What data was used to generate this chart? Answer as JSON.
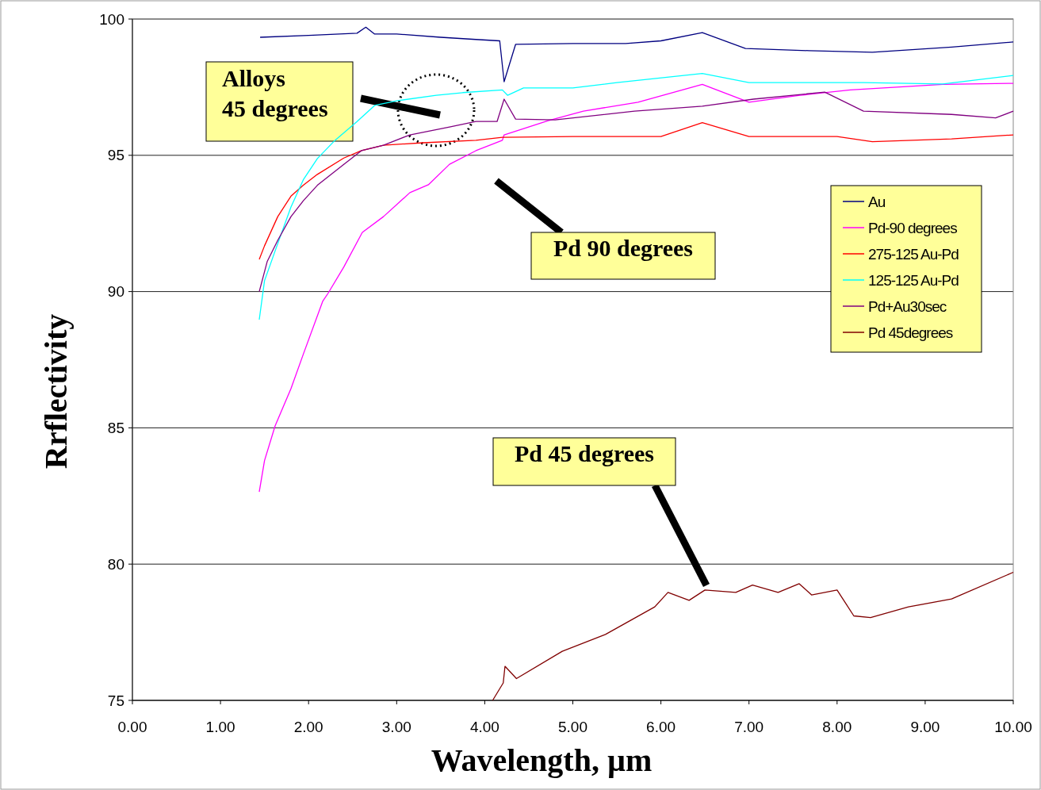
{
  "chart_data": {
    "type": "line",
    "xlabel": "Wavelength, µm",
    "ylabel": "Rrflectivity",
    "xlim": [
      0,
      10
    ],
    "ylim": [
      75,
      100
    ],
    "xticks": [
      {
        "value": 0,
        "label": "0.00"
      },
      {
        "value": 1,
        "label": "1.00"
      },
      {
        "value": 2,
        "label": "2.00"
      },
      {
        "value": 3,
        "label": "3.00"
      },
      {
        "value": 4,
        "label": "4.00"
      },
      {
        "value": 5,
        "label": "5.00"
      },
      {
        "value": 6,
        "label": "6.00"
      },
      {
        "value": 7,
        "label": "7.00"
      },
      {
        "value": 8,
        "label": "8.00"
      },
      {
        "value": 9,
        "label": "9.00"
      },
      {
        "value": 10,
        "label": "10.00"
      }
    ],
    "yticks": [
      75,
      80,
      85,
      90,
      95,
      100
    ],
    "grid": "y",
    "legend": "right",
    "marker": "none",
    "line_style": "solid",
    "series": [
      {
        "name": "Au",
        "color": "#000080",
        "x": [
          1.45,
          2.0,
          2.55,
          2.65,
          2.75,
          3.0,
          3.5,
          3.9,
          4.17,
          4.22,
          4.35,
          5.0,
          5.6,
          6.0,
          6.47,
          6.96,
          7.68,
          8.4,
          9.3,
          10.0
        ],
        "values": [
          99.33,
          99.4,
          99.48,
          99.7,
          99.45,
          99.45,
          99.33,
          99.25,
          99.2,
          97.7,
          99.07,
          99.1,
          99.1,
          99.2,
          99.5,
          98.92,
          98.84,
          98.78,
          98.97,
          99.16
        ]
      },
      {
        "name": "Pd-90 degrees",
        "color": "#ff00ff",
        "x": [
          1.44,
          1.5,
          1.62,
          1.8,
          1.94,
          2.16,
          2.22,
          2.4,
          2.61,
          2.85,
          3.15,
          3.36,
          3.6,
          3.9,
          4.2,
          4.22,
          4.72,
          5.12,
          5.74,
          6.47,
          7.0,
          7.58,
          8.15,
          9.2,
          10.0
        ],
        "values": [
          82.65,
          83.8,
          85.07,
          86.44,
          87.7,
          89.64,
          89.93,
          90.9,
          92.17,
          92.75,
          93.63,
          93.92,
          94.67,
          95.17,
          95.55,
          95.75,
          96.27,
          96.62,
          96.95,
          97.6,
          96.95,
          97.2,
          97.4,
          97.6,
          97.64
        ]
      },
      {
        "name": "275-125 Au-Pd",
        "color": "#ff0000",
        "x": [
          1.44,
          1.5,
          1.65,
          1.8,
          1.94,
          2.1,
          2.4,
          2.6,
          2.85,
          3.3,
          3.9,
          4.2,
          5.0,
          6.0,
          6.47,
          7.0,
          8.0,
          8.4,
          9.3,
          10.0
        ],
        "values": [
          91.18,
          91.68,
          92.75,
          93.5,
          93.9,
          94.3,
          94.9,
          95.17,
          95.37,
          95.46,
          95.55,
          95.66,
          95.69,
          95.69,
          96.2,
          95.69,
          95.69,
          95.5,
          95.6,
          95.75
        ]
      },
      {
        "name": "125-125 Au-Pd",
        "color": "#00ffff",
        "x": [
          1.44,
          1.5,
          1.65,
          1.8,
          1.94,
          2.1,
          2.3,
          2.55,
          2.75,
          3.0,
          3.45,
          3.75,
          4.2,
          4.26,
          4.44,
          5.0,
          5.5,
          6.47,
          7.0,
          8.3,
          9.2,
          10.0
        ],
        "values": [
          88.97,
          90.4,
          91.76,
          93.1,
          94.1,
          94.88,
          95.55,
          96.24,
          96.83,
          97.0,
          97.2,
          97.3,
          97.4,
          97.2,
          97.47,
          97.47,
          97.67,
          98.0,
          97.67,
          97.67,
          97.62,
          97.93
        ]
      },
      {
        "name": "Pd+Au30sec",
        "color": "#800080",
        "x": [
          1.44,
          1.53,
          1.65,
          1.8,
          1.94,
          2.1,
          2.4,
          2.6,
          2.85,
          3.15,
          3.6,
          3.9,
          4.14,
          4.22,
          4.35,
          4.8,
          5.7,
          6.47,
          7.05,
          7.86,
          8.3,
          9.3,
          9.8,
          10.0
        ],
        "values": [
          90.0,
          91.1,
          91.88,
          92.75,
          93.33,
          93.9,
          94.67,
          95.17,
          95.37,
          95.75,
          96.04,
          96.24,
          96.24,
          97.06,
          96.33,
          96.3,
          96.62,
          96.8,
          97.06,
          97.32,
          96.62,
          96.5,
          96.37,
          96.62
        ]
      },
      {
        "name": "Pd 45degrees",
        "color": "#800000",
        "x": [
          4.09,
          4.21,
          4.23,
          4.36,
          4.88,
          5.37,
          5.93,
          6.08,
          6.32,
          6.5,
          6.85,
          7.04,
          7.33,
          7.57,
          7.71,
          8.0,
          8.19,
          8.38,
          8.81,
          9.3,
          10.0
        ],
        "values": [
          75.0,
          75.64,
          76.25,
          75.8,
          76.8,
          77.42,
          78.43,
          78.96,
          78.67,
          79.05,
          78.96,
          79.23,
          78.96,
          79.28,
          78.87,
          79.05,
          78.1,
          78.04,
          78.43,
          78.72,
          79.7
        ]
      }
    ],
    "annotations": [
      "Alloys\n45 degrees",
      "Pd 90 degrees",
      "Pd 45 degrees"
    ]
  }
}
